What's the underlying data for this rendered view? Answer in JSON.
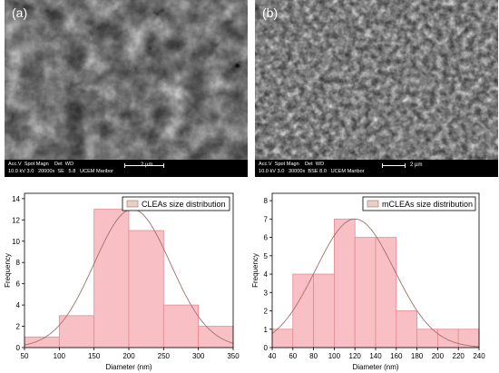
{
  "panels": [
    {
      "label": "(a)",
      "sem": {
        "databar_header": "Acc.V  Spot Magn    Det  WD",
        "databar_values": "10.0 kV 3.0   20000x  SE   5.8   UCEM Maribor",
        "scale_label": "2 µm"
      }
    },
    {
      "label": "(b)",
      "sem": {
        "databar_header": "Acc.V  Spot Magn    Det  WD",
        "databar_values": "10.0 kV 3.0   30000x  BSE 8.0   UCEM Maribor",
        "scale_label": "2 µm"
      }
    }
  ],
  "chart_data": [
    {
      "type": "bar",
      "bins": [
        [
          50,
          100
        ],
        [
          100,
          150
        ],
        [
          150,
          200
        ],
        [
          200,
          250
        ],
        [
          250,
          300
        ],
        [
          300,
          350
        ]
      ],
      "values": [
        1,
        3,
        13,
        11,
        4,
        2
      ],
      "fit": {
        "type": "normal",
        "mean": 205,
        "sd": 55,
        "peak": 13
      },
      "xlabel": "Diameter (nm)",
      "ylabel": "Frequency",
      "xlim": [
        50,
        350
      ],
      "ylim": [
        0,
        14.5
      ],
      "xticks": [
        "50",
        "100",
        "150",
        "200",
        "250",
        "300",
        "350"
      ],
      "yticks": [
        "0",
        "2",
        "4",
        "6",
        "8",
        "10",
        "12",
        "14"
      ],
      "xtick_values": [
        50,
        100,
        150,
        200,
        250,
        300,
        350
      ],
      "ytick_values": [
        0,
        2,
        4,
        6,
        8,
        10,
        12,
        14
      ],
      "legend": "CLEAs size distribution",
      "legend_position": "top-right",
      "colors": {
        "bar_fill": "#f8c0c4",
        "bar_edge": "#e88890",
        "curve": "#a0706c",
        "legend_swatch": "#e8d0c8"
      }
    },
    {
      "type": "bar",
      "bins": [
        [
          40,
          60
        ],
        [
          60,
          80
        ],
        [
          80,
          100
        ],
        [
          100,
          120
        ],
        [
          120,
          140
        ],
        [
          140,
          160
        ],
        [
          160,
          180
        ],
        [
          180,
          200
        ],
        [
          200,
          220
        ],
        [
          220,
          240
        ]
      ],
      "values": [
        1,
        4,
        4,
        7,
        6,
        6,
        2,
        1,
        1,
        1
      ],
      "fit": {
        "type": "normal",
        "mean": 120,
        "sd": 38,
        "peak": 7
      },
      "xlabel": "Diameter (nm)",
      "ylabel": "Frequency",
      "xlim": [
        40,
        240
      ],
      "ylim": [
        0,
        8.4
      ],
      "xticks": [
        "40",
        "60",
        "80",
        "100",
        "120",
        "140",
        "160",
        "180",
        "200",
        "220",
        "240"
      ],
      "yticks": [
        "0",
        "1",
        "2",
        "3",
        "4",
        "5",
        "6",
        "7",
        "8"
      ],
      "xtick_values": [
        40,
        60,
        80,
        100,
        120,
        140,
        160,
        180,
        200,
        220,
        240
      ],
      "ytick_values": [
        0,
        1,
        2,
        3,
        4,
        5,
        6,
        7,
        8
      ],
      "legend": "mCLEAs size distribution",
      "legend_position": "top-right",
      "colors": {
        "bar_fill": "#f8c0c4",
        "bar_edge": "#e88890",
        "curve": "#a0706c",
        "legend_swatch": "#e8d0c8"
      }
    }
  ]
}
